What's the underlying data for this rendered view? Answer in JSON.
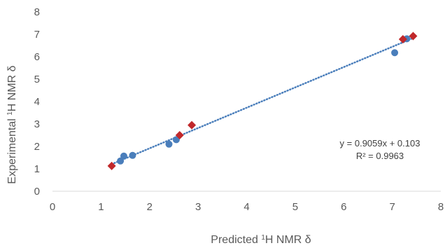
{
  "chart_data": {
    "type": "scatter",
    "xlabel": {
      "prefix": "Predicted ",
      "sup": "1",
      "suffix": "H NMR δ"
    },
    "ylabel": {
      "prefix": "Experimental ",
      "sup": "1",
      "suffix": "H NMR δ"
    },
    "xlim": [
      0,
      8
    ],
    "ylim": [
      0,
      8
    ],
    "xticks": [
      "0",
      "1",
      "2",
      "3",
      "4",
      "5",
      "6",
      "7",
      "8"
    ],
    "yticks": [
      "0",
      "1",
      "2",
      "3",
      "4",
      "5",
      "6",
      "7",
      "8"
    ],
    "grid": false,
    "legend": "none",
    "series": [
      {
        "marker": "circle",
        "color": "#4a7ebb",
        "points": [
          {
            "x": 1.4,
            "y": 1.35
          },
          {
            "x": 1.47,
            "y": 1.57
          },
          {
            "x": 1.65,
            "y": 1.6
          },
          {
            "x": 2.4,
            "y": 2.1
          },
          {
            "x": 2.55,
            "y": 2.3
          },
          {
            "x": 7.05,
            "y": 6.18
          },
          {
            "x": 7.3,
            "y": 6.8
          }
        ]
      },
      {
        "marker": "diamond",
        "color": "#c0282b",
        "points": [
          {
            "x": 1.22,
            "y": 1.13
          },
          {
            "x": 2.62,
            "y": 2.5
          },
          {
            "x": 2.87,
            "y": 2.95
          },
          {
            "x": 7.22,
            "y": 6.78
          },
          {
            "x": 7.43,
            "y": 6.92
          }
        ]
      }
    ],
    "trendline": {
      "slope": 0.9059,
      "intercept": 0.103,
      "x_range": [
        1.22,
        7.43
      ],
      "style": "dotted",
      "color": "#4a7ebb"
    },
    "annotations": {
      "equation": "y = 0.9059x + 0.103",
      "r2": "R² = 0.9963"
    }
  }
}
